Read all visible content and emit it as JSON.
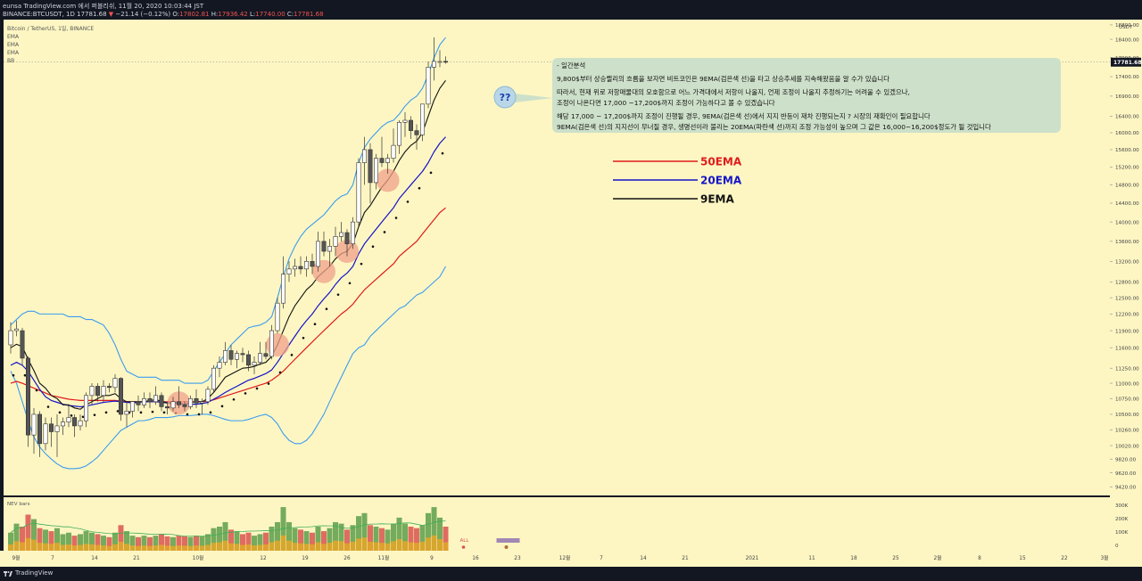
{
  "header": {
    "line1": "eunsa TradingView.com 에서 퍼블리쉬, 11월 20, 2020 10:03:44 JST",
    "symbol": "BINANCE:BTCUSDT, 1D",
    "last": "17781.68",
    "change_arrow": "▼",
    "change": "−21.14 (−0.12%)",
    "o_label": "O:",
    "o": "17802.81",
    "h_label": "H:",
    "h": "17936.42",
    "l_label": "L:",
    "l": "17740.00",
    "c_label": "C:",
    "c": "17781.68"
  },
  "pane": {
    "title": "Bitcoin / TetherUS, 1일, BINANCE",
    "indicators": [
      "EMA",
      "EMA",
      "EMA",
      "BB"
    ],
    "volume_label": "NEV bars",
    "currency": "USDT",
    "price_tag": "17781.68",
    "markers": [
      "ALL"
    ]
  },
  "analysis": {
    "heading": "- 일간분석",
    "p1": "9,800$부터 상승랠리의 흐름을 보자면 비트코인은 9EMA(검은색 선)을 타고 상승추세를 지속해왔음을 알 수가 있습니다",
    "p2a": "따라서, 현재 위로 저항매물대의 모호함으로 어느 가격대에서 저항이 나올지, 언제 조정이 나올지 추정하기는 어려울 수 있겠으나,",
    "p2b": "조정이 나온다면 17,000 ~17,200$까지 조정이 가능하다고 볼 수 있겠습니다",
    "p3a": "해당 17,000 ~ 17,200$까지 조정이 진행될 경우, 9EMA(검은색 선)에서 지지 반등이 재차 진행되는지 ? 시장의 재확인이 필요합니다",
    "p3b": "9EMA(검은색 선)의 지지선이 무너질 경우, 생명선이라 불리는 20EMA(파란색 선)까지 조정 가능성이 높으며 그 값은 16,000~16,200$정도가 될 것입니다"
  },
  "annotations": {
    "question": "??"
  },
  "legend": [
    {
      "label": "50EMA",
      "color": "#e01b1b"
    },
    {
      "label": "20EMA",
      "color": "#1414c8"
    },
    {
      "label": "9EMA",
      "color": "#111111"
    }
  ],
  "footer": {
    "brand": "TradingView"
  },
  "colors": {
    "background": "#fdf6c3",
    "up": "#ffffff",
    "down": "#555555",
    "bb": "#3c9cf0",
    "highlight": "#f0a08a"
  },
  "chart_data": {
    "type": "candlestick",
    "title": "Bitcoin / TetherUS, 1일, BINANCE",
    "y_axis": {
      "ticks": [
        9420,
        9620,
        9820,
        10020,
        10260,
        10500,
        10750,
        11000,
        11250,
        11600,
        11900,
        12200,
        12500,
        12800,
        13200,
        13600,
        14000,
        14400,
        14800,
        15200,
        15600,
        16000,
        16400,
        16900,
        17400,
        17900,
        18400,
        18800
      ],
      "tick_labels": [
        "9420.00",
        "9620.00",
        "9820.00",
        "10020.00",
        "10260.00",
        "10500.00",
        "10750.00",
        "11000.00",
        "11250.00",
        "11600.00",
        "11900.00",
        "12200.00",
        "12500.00",
        "12800.00",
        "13200.00",
        "13600.00",
        "14000.00",
        "14400.00",
        "14800.00",
        "15200.00",
        "15600.00",
        "16000.00",
        "16400.00",
        "16900.00",
        "17400.00",
        "17900.00",
        "18400.00",
        "18800.00"
      ],
      "scale": "log"
    },
    "volume_axis": {
      "ticks": [
        0,
        100000,
        200000,
        300000
      ],
      "tick_labels": [
        "0",
        "100K",
        "200K",
        "300K"
      ]
    },
    "x_axis": {
      "tick_labels": [
        "9월",
        "7",
        "14",
        "21",
        "10월",
        "12",
        "19",
        "26",
        "11월",
        "9",
        "16",
        "23",
        "12월",
        "7",
        "14",
        "21",
        "2021",
        "11",
        "18",
        "25",
        "2월",
        "8",
        "15",
        "22",
        "3월"
      ],
      "start_date": "2020-09-01"
    },
    "last_price": 17781.68,
    "candles": [
      {
        "o": 11650,
        "h": 12050,
        "l": 11500,
        "c": 11900
      },
      {
        "o": 11900,
        "h": 12080,
        "l": 11800,
        "c": 11930
      },
      {
        "o": 11900,
        "h": 11950,
        "l": 11300,
        "c": 11420
      },
      {
        "o": 11420,
        "h": 11450,
        "l": 10000,
        "c": 10180
      },
      {
        "o": 10180,
        "h": 10600,
        "l": 9900,
        "c": 10500
      },
      {
        "o": 10500,
        "h": 10550,
        "l": 9850,
        "c": 10050
      },
      {
        "o": 10050,
        "h": 10450,
        "l": 9950,
        "c": 10350
      },
      {
        "o": 10350,
        "h": 10450,
        "l": 10000,
        "c": 10230
      },
      {
        "o": 10230,
        "h": 10500,
        "l": 9850,
        "c": 10320
      },
      {
        "o": 10320,
        "h": 10450,
        "l": 10180,
        "c": 10380
      },
      {
        "o": 10380,
        "h": 10650,
        "l": 10300,
        "c": 10450
      },
      {
        "o": 10450,
        "h": 10500,
        "l": 10150,
        "c": 10320
      },
      {
        "o": 10320,
        "h": 10500,
        "l": 10250,
        "c": 10400
      },
      {
        "o": 10400,
        "h": 10850,
        "l": 10300,
        "c": 10800
      },
      {
        "o": 10800,
        "h": 11000,
        "l": 10650,
        "c": 10950
      },
      {
        "o": 10950,
        "h": 11000,
        "l": 10700,
        "c": 10800
      },
      {
        "o": 10800,
        "h": 11050,
        "l": 10700,
        "c": 10950
      },
      {
        "o": 10950,
        "h": 11000,
        "l": 10850,
        "c": 10930
      },
      {
        "o": 10930,
        "h": 11150,
        "l": 10850,
        "c": 11080
      },
      {
        "o": 11080,
        "h": 11100,
        "l": 10400,
        "c": 10500
      },
      {
        "o": 10500,
        "h": 10700,
        "l": 10300,
        "c": 10550
      },
      {
        "o": 10550,
        "h": 10700,
        "l": 10450,
        "c": 10700
      },
      {
        "o": 10700,
        "h": 10800,
        "l": 10550,
        "c": 10650
      },
      {
        "o": 10650,
        "h": 10850,
        "l": 10600,
        "c": 10750
      },
      {
        "o": 10750,
        "h": 10850,
        "l": 10600,
        "c": 10700
      },
      {
        "o": 10700,
        "h": 10950,
        "l": 10650,
        "c": 10800
      },
      {
        "o": 10800,
        "h": 10850,
        "l": 10550,
        "c": 10620
      },
      {
        "o": 10620,
        "h": 10700,
        "l": 10500,
        "c": 10600
      },
      {
        "o": 10600,
        "h": 10780,
        "l": 10550,
        "c": 10700
      },
      {
        "o": 10700,
        "h": 10950,
        "l": 10600,
        "c": 10650
      },
      {
        "o": 10650,
        "h": 10700,
        "l": 10550,
        "c": 10620
      },
      {
        "o": 10620,
        "h": 10800,
        "l": 10580,
        "c": 10750
      },
      {
        "o": 10750,
        "h": 10900,
        "l": 10600,
        "c": 10680
      },
      {
        "o": 10680,
        "h": 10750,
        "l": 10500,
        "c": 10700
      },
      {
        "o": 10700,
        "h": 10950,
        "l": 10650,
        "c": 10900
      },
      {
        "o": 10900,
        "h": 11300,
        "l": 10850,
        "c": 11250
      },
      {
        "o": 11250,
        "h": 11450,
        "l": 11100,
        "c": 11350
      },
      {
        "o": 11350,
        "h": 11700,
        "l": 11300,
        "c": 11550
      },
      {
        "o": 11550,
        "h": 11650,
        "l": 11300,
        "c": 11400
      },
      {
        "o": 11400,
        "h": 11550,
        "l": 11250,
        "c": 11500
      },
      {
        "o": 11500,
        "h": 11600,
        "l": 11350,
        "c": 11480
      },
      {
        "o": 11480,
        "h": 11550,
        "l": 11200,
        "c": 11300
      },
      {
        "o": 11300,
        "h": 11450,
        "l": 11150,
        "c": 11350
      },
      {
        "o": 11350,
        "h": 11700,
        "l": 11300,
        "c": 11500
      },
      {
        "o": 11500,
        "h": 11700,
        "l": 11400,
        "c": 11450
      },
      {
        "o": 11450,
        "h": 12000,
        "l": 11400,
        "c": 11900
      },
      {
        "o": 11900,
        "h": 12500,
        "l": 11850,
        "c": 12400
      },
      {
        "o": 12400,
        "h": 13300,
        "l": 12300,
        "c": 12950
      },
      {
        "o": 12950,
        "h": 13200,
        "l": 12800,
        "c": 13050
      },
      {
        "o": 13050,
        "h": 13250,
        "l": 12900,
        "c": 13100
      },
      {
        "o": 13100,
        "h": 13300,
        "l": 12950,
        "c": 13050
      },
      {
        "o": 13050,
        "h": 13300,
        "l": 12900,
        "c": 13200
      },
      {
        "o": 13200,
        "h": 13350,
        "l": 12950,
        "c": 13100
      },
      {
        "o": 13100,
        "h": 13800,
        "l": 13000,
        "c": 13600
      },
      {
        "o": 13600,
        "h": 13800,
        "l": 13300,
        "c": 13400
      },
      {
        "o": 13400,
        "h": 13650,
        "l": 13100,
        "c": 13500
      },
      {
        "o": 13500,
        "h": 13900,
        "l": 13300,
        "c": 13700
      },
      {
        "o": 13700,
        "h": 14000,
        "l": 13600,
        "c": 13780
      },
      {
        "o": 13780,
        "h": 13850,
        "l": 13300,
        "c": 13550
      },
      {
        "o": 13550,
        "h": 14100,
        "l": 13450,
        "c": 14000
      },
      {
        "o": 14000,
        "h": 15400,
        "l": 13900,
        "c": 15300
      },
      {
        "o": 15300,
        "h": 15900,
        "l": 14800,
        "c": 15600
      },
      {
        "o": 15600,
        "h": 15750,
        "l": 14400,
        "c": 14850
      },
      {
        "o": 14850,
        "h": 15500,
        "l": 14700,
        "c": 15400
      },
      {
        "o": 15400,
        "h": 15900,
        "l": 15200,
        "c": 15300
      },
      {
        "o": 15300,
        "h": 15500,
        "l": 15050,
        "c": 15400
      },
      {
        "o": 15400,
        "h": 16100,
        "l": 15300,
        "c": 15700
      },
      {
        "o": 15700,
        "h": 16300,
        "l": 15500,
        "c": 16250
      },
      {
        "o": 16250,
        "h": 16500,
        "l": 15900,
        "c": 16300
      },
      {
        "o": 16300,
        "h": 16400,
        "l": 15850,
        "c": 16050
      },
      {
        "o": 16050,
        "h": 16200,
        "l": 15600,
        "c": 15950
      },
      {
        "o": 15950,
        "h": 16700,
        "l": 15800,
        "c": 16700
      },
      {
        "o": 16700,
        "h": 17800,
        "l": 16600,
        "c": 17650
      },
      {
        "o": 17650,
        "h": 18450,
        "l": 17300,
        "c": 17800
      },
      {
        "o": 17800,
        "h": 18100,
        "l": 17650,
        "c": 17800
      },
      {
        "o": 17802.81,
        "h": 17936.42,
        "l": 17740.0,
        "c": 17781.68
      }
    ],
    "ema9": [
      11600,
      11660,
      11620,
      11400,
      11210,
      11000,
      10920,
      10800,
      10750,
      10650,
      10650,
      10600,
      10580,
      10650,
      10700,
      10750,
      10800,
      10800,
      10830,
      10750,
      10700,
      10700,
      10700,
      10700,
      10720,
      10730,
      10710,
      10680,
      10680,
      10680,
      10660,
      10690,
      10700,
      10700,
      10750,
      10850,
      10970,
      11100,
      11150,
      11200,
      11250,
      11260,
      11280,
      11320,
      11350,
      11450,
      11650,
      11900,
      12150,
      12350,
      12500,
      12650,
      12750,
      12900,
      13000,
      13100,
      13250,
      13350,
      13400,
      13550,
      13900,
      14200,
      14350,
      14550,
      14750,
      14900,
      15100,
      15350,
      15550,
      15700,
      15800,
      16000,
      16400,
      16800,
      17100,
      17300
    ],
    "ema20": [
      11300,
      11350,
      11300,
      11200,
      11050,
      10900,
      10780,
      10720,
      10690,
      10660,
      10640,
      10630,
      10620,
      10630,
      10650,
      10670,
      10690,
      10700,
      10710,
      10700,
      10690,
      10680,
      10690,
      10700,
      10700,
      10700,
      10690,
      10680,
      10680,
      10670,
      10660,
      10660,
      10660,
      10670,
      10690,
      10740,
      10790,
      10850,
      10900,
      10950,
      11000,
      11050,
      11080,
      11120,
      11160,
      11220,
      11350,
      11500,
      11650,
      11800,
      11950,
      12080,
      12200,
      12350,
      12480,
      12600,
      12750,
      12880,
      12970,
      13100,
      13350,
      13550,
      13700,
      13850,
      14000,
      14150,
      14300,
      14500,
      14650,
      14800,
      14950,
      15100,
      15300,
      15550,
      15750,
      15900
    ],
    "ema50": [
      11000,
      11030,
      11000,
      10960,
      10920,
      10880,
      10840,
      10800,
      10780,
      10760,
      10740,
      10730,
      10720,
      10720,
      10720,
      10720,
      10720,
      10720,
      10720,
      10710,
      10700,
      10700,
      10700,
      10700,
      10700,
      10700,
      10700,
      10700,
      10700,
      10700,
      10700,
      10700,
      10700,
      10700,
      10710,
      10730,
      10760,
      10790,
      10820,
      10850,
      10880,
      10910,
      10940,
      10970,
      11000,
      11050,
      11120,
      11200,
      11300,
      11400,
      11500,
      11600,
      11700,
      11800,
      11900,
      12000,
      12100,
      12200,
      12280,
      12380,
      12520,
      12650,
      12750,
      12850,
      12950,
      13050,
      13150,
      13300,
      13400,
      13500,
      13600,
      13750,
      13900,
      14050,
      14200,
      14300
    ],
    "bb_upper": [
      12000,
      12100,
      12200,
      12250,
      12250,
      12200,
      12200,
      12200,
      12200,
      12200,
      12150,
      12150,
      12150,
      12100,
      12100,
      12050,
      12000,
      11850,
      11650,
      11400,
      11200,
      11150,
      11100,
      11100,
      11100,
      11100,
      11050,
      11050,
      11050,
      11050,
      11000,
      11000,
      11000,
      11000,
      11050,
      11200,
      11350,
      11500,
      11650,
      11750,
      11850,
      11950,
      11980,
      12000,
      12050,
      12150,
      12500,
      12900,
      13250,
      13500,
      13700,
      13850,
      13950,
      14050,
      14150,
      14300,
      14450,
      14550,
      14600,
      14800,
      15300,
      15650,
      15850,
      16000,
      16150,
      16250,
      16300,
      16450,
      16650,
      16800,
      16900,
      17100,
      17450,
      17900,
      18250,
      18450
    ],
    "bb_lower": [
      11200,
      11000,
      10700,
      10400,
      10150,
      10000,
      9900,
      9820,
      9750,
      9700,
      9680,
      9680,
      9690,
      9720,
      9780,
      9850,
      9950,
      10050,
      10150,
      10250,
      10300,
      10350,
      10400,
      10400,
      10420,
      10450,
      10450,
      10450,
      10460,
      10480,
      10480,
      10480,
      10490,
      10500,
      10500,
      10480,
      10450,
      10420,
      10400,
      10400,
      10400,
      10420,
      10450,
      10480,
      10500,
      10450,
      10350,
      10200,
      10100,
      10050,
      10050,
      10100,
      10200,
      10350,
      10500,
      10700,
      10900,
      11100,
      11300,
      11500,
      11600,
      11650,
      11800,
      11900,
      12000,
      12100,
      12200,
      12300,
      12350,
      12450,
      12550,
      12600,
      12700,
      12800,
      12900,
      13100
    ],
    "volume": [
      120,
      180,
      160,
      240,
      210,
      150,
      140,
      130,
      150,
      110,
      120,
      100,
      110,
      130,
      120,
      110,
      100,
      90,
      120,
      170,
      130,
      100,
      90,
      100,
      90,
      100,
      110,
      95,
      90,
      100,
      95,
      90,
      100,
      95,
      110,
      150,
      160,
      190,
      140,
      130,
      110,
      120,
      100,
      110,
      120,
      160,
      190,
      290,
      190,
      150,
      140,
      130,
      120,
      160,
      130,
      150,
      190,
      180,
      140,
      170,
      230,
      250,
      170,
      160,
      150,
      140,
      180,
      220,
      180,
      160,
      150,
      170,
      250,
      290,
      220,
      160
    ],
    "highlighted_touches": [
      29,
      46,
      54,
      58,
      65
    ],
    "callout_label": "??"
  }
}
